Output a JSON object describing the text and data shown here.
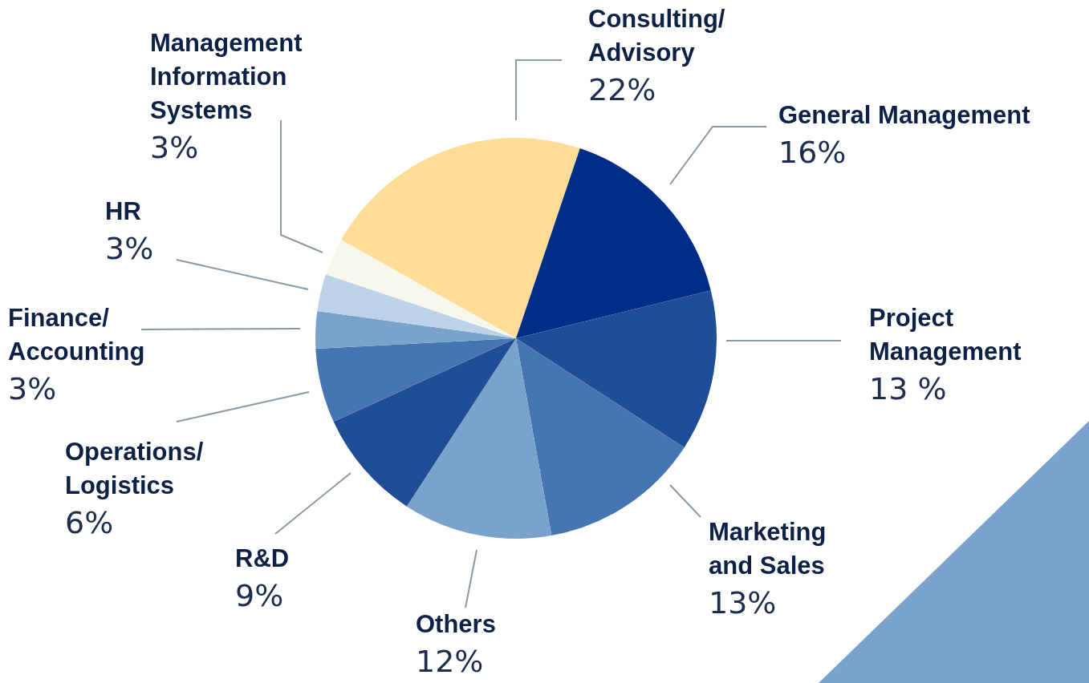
{
  "chart_data": {
    "type": "pie",
    "categories": [
      "Consulting/ Advisory",
      "General Management",
      "Project Management",
      "Marketing and Sales",
      "Others",
      "R&D",
      "Operations/ Logistics",
      "Finance/ Accounting",
      "HR",
      "Management Information Systems"
    ],
    "values": [
      22,
      16,
      13,
      13,
      12,
      9,
      6,
      3,
      3,
      3
    ],
    "value_labels": [
      "22%",
      "16%",
      "13 %",
      "13%",
      "12%",
      "9%",
      "6%",
      "3%",
      "3%",
      "3%"
    ],
    "colors": [
      "#fddc96",
      "#002e87",
      "#1f4e96",
      "#4676b2",
      "#7aa3cc",
      "#1f4e96",
      "#4676b2",
      "#7aa3cc",
      "#bcd2e8",
      "#f8f7ee"
    ]
  }
}
